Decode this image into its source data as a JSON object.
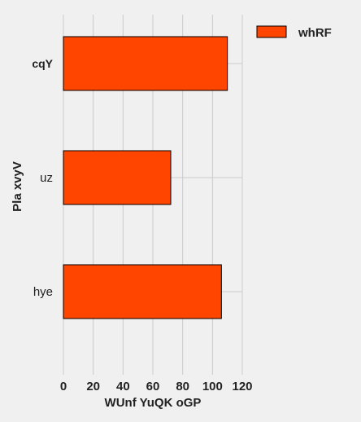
{
  "chart_data": {
    "type": "bar",
    "orientation": "horizontal",
    "categories": [
      "cqY",
      "uz",
      "hye"
    ],
    "series": [
      {
        "name": "whRF",
        "values": [
          110,
          72,
          106
        ],
        "color": "#ff4500"
      }
    ],
    "xlabel": "WUnf YuQK oGP",
    "ylabel": "Pla xvyV",
    "xlim": [
      0,
      120
    ],
    "xticks": [
      0,
      20,
      40,
      60,
      80,
      100,
      120
    ],
    "grid": true,
    "legend": "top-right"
  }
}
